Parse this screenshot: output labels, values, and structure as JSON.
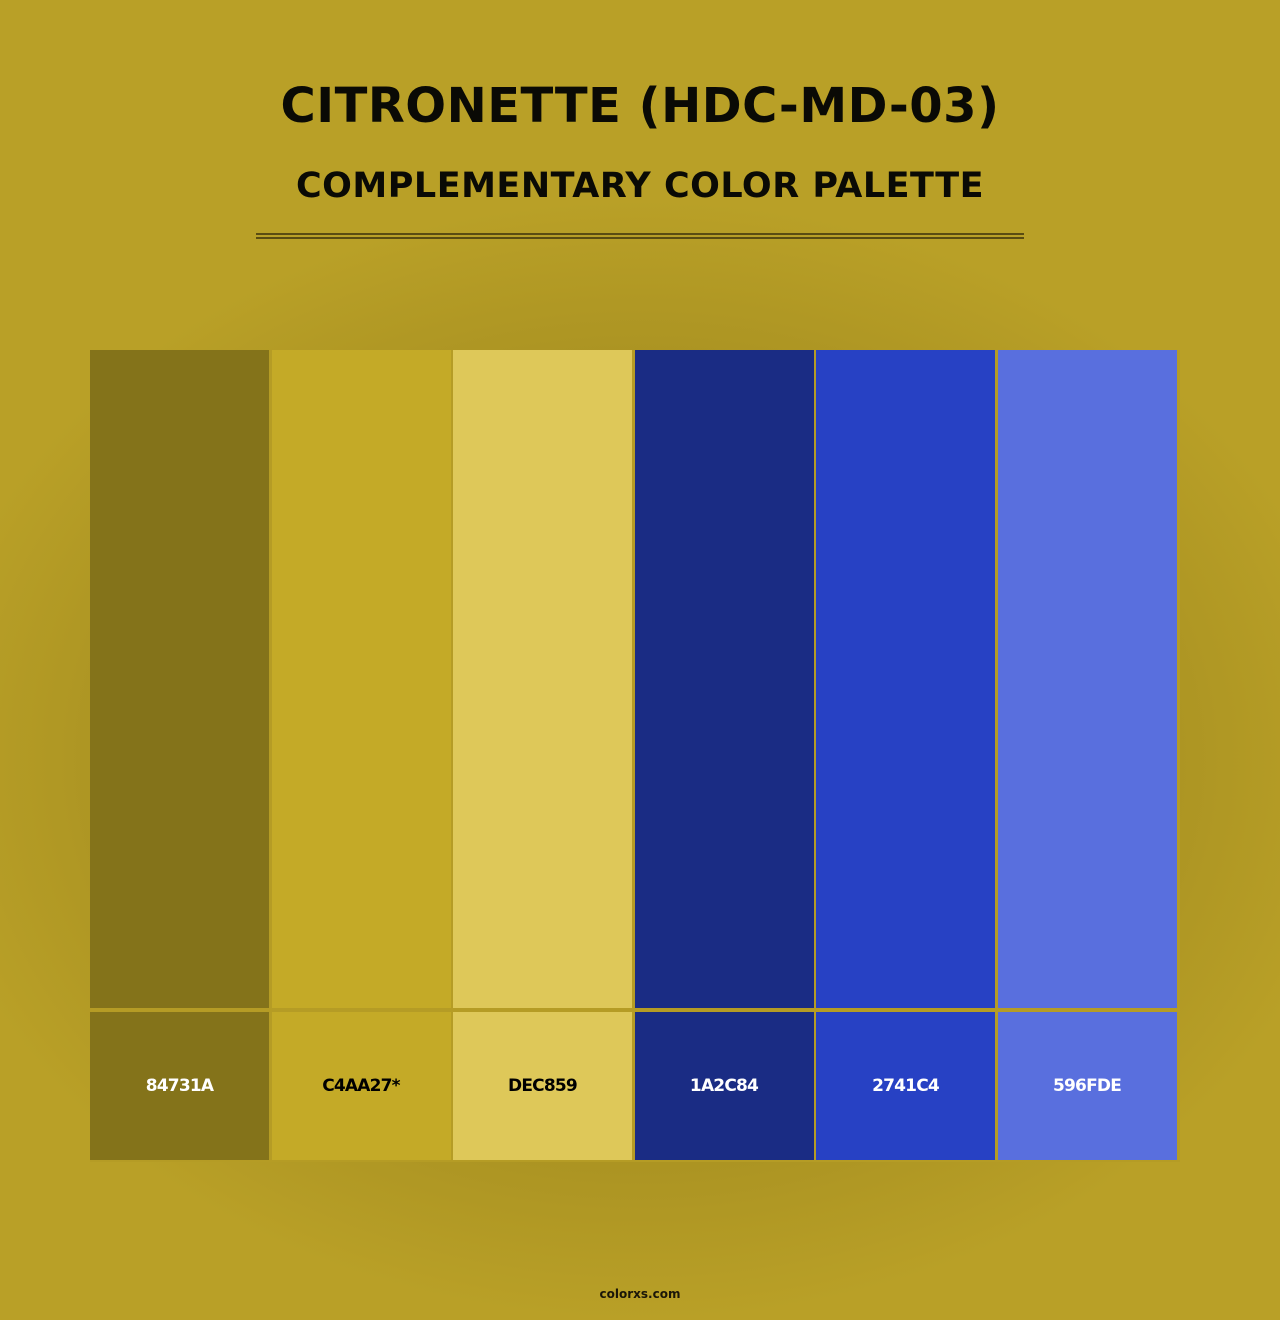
{
  "header": {
    "title": "CITRONETTE (HDC-MD-03)",
    "subtitle": "COMPLEMENTARY COLOR PALETTE"
  },
  "colors": {
    "background": "#b9a027"
  },
  "swatches": [
    {
      "hex": "#84731A",
      "label": "84731A",
      "text_color": "#ffffff"
    },
    {
      "hex": "#C4AA27",
      "label": "C4AA27*",
      "text_color": "#000000"
    },
    {
      "hex": "#DEC859",
      "label": "DEC859",
      "text_color": "#000000"
    },
    {
      "hex": "#1A2C84",
      "label": "1A2C84",
      "text_color": "#ffffff"
    },
    {
      "hex": "#2741C4",
      "label": "2741C4",
      "text_color": "#ffffff"
    },
    {
      "hex": "#596FDE",
      "label": "596FDE",
      "text_color": "#ffffff"
    }
  ],
  "footer": {
    "site": "colorxs.com"
  }
}
